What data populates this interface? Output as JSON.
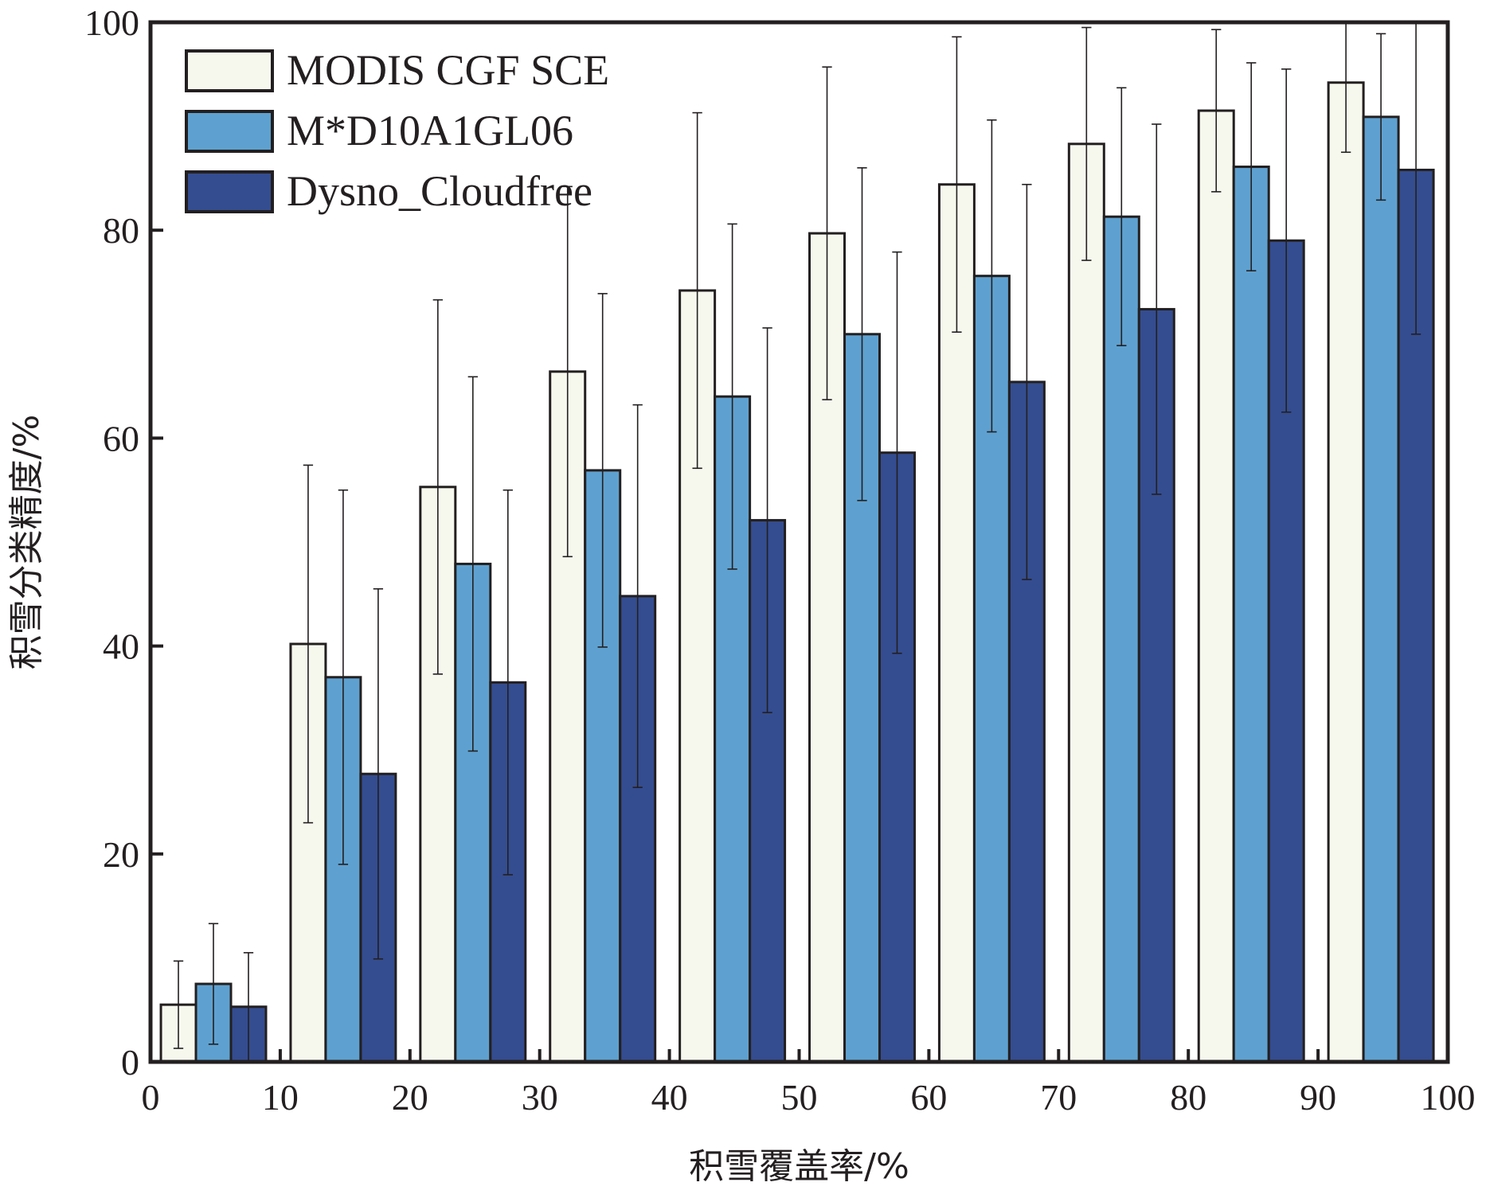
{
  "chart_data": {
    "type": "bar",
    "xlabel": "积雪覆盖率/%",
    "ylabel": "积雪分类精度/%",
    "xlim": [
      0,
      100
    ],
    "ylim": [
      0,
      100
    ],
    "x_ticks": [
      0,
      10,
      20,
      30,
      40,
      50,
      60,
      70,
      80,
      90,
      100
    ],
    "y_ticks": [
      0,
      20,
      40,
      60,
      80,
      100
    ],
    "bin_width": 10,
    "legend_position": "top-left",
    "grid": false,
    "series": [
      {
        "name": "MODIS CGF SCE",
        "color": "#f6f8ee",
        "values": [
          5.5,
          40.2,
          55.3,
          66.4,
          74.2,
          79.7,
          84.4,
          88.3,
          91.5,
          94.2
        ],
        "error": [
          4.2,
          17.2,
          18.0,
          17.8,
          17.1,
          16.0,
          14.2,
          11.2,
          7.8,
          6.7
        ]
      },
      {
        "name": "M*D10A1GL06",
        "color": "#5ea1d0",
        "values": [
          7.5,
          37.0,
          47.9,
          56.9,
          64.0,
          70.0,
          75.6,
          81.3,
          86.1,
          90.9
        ],
        "error": [
          5.8,
          18.0,
          18.0,
          17.0,
          16.6,
          16.0,
          15.0,
          12.4,
          10.0,
          8.0
        ]
      },
      {
        "name": "Dysno_Cloudfree",
        "color": "#344d90",
        "values": [
          5.3,
          27.7,
          36.5,
          44.8,
          52.1,
          58.6,
          65.4,
          72.4,
          79.0,
          85.8
        ],
        "error": [
          5.2,
          17.8,
          18.5,
          18.4,
          18.5,
          19.3,
          19.0,
          17.8,
          16.5,
          15.8
        ]
      }
    ]
  }
}
